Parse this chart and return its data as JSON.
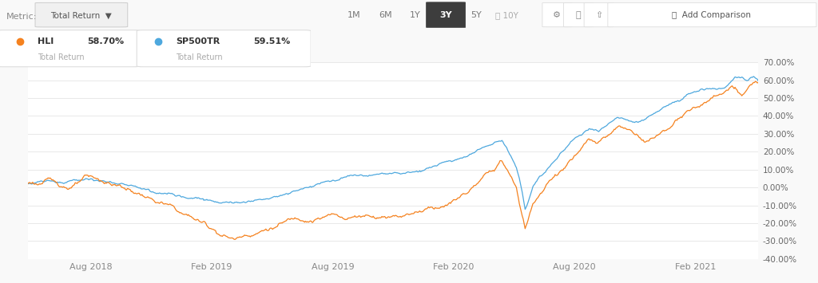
{
  "hli_final": 58.7,
  "sp500_final": 59.51,
  "ylim": [
    -40,
    70
  ],
  "yticks": [
    -40,
    -30,
    -20,
    -10,
    0,
    10,
    20,
    30,
    40,
    50,
    60,
    70
  ],
  "hli_color": "#f5821f",
  "sp500_color": "#4ea8de",
  "bg_color": "#ffffff",
  "grid_color": "#e8e8e8",
  "fig_bg": "#f9f9f9",
  "x_labels": [
    "Aug 2018",
    "Feb 2019",
    "Aug 2019",
    "Feb 2020",
    "Aug 2020",
    "Feb 2021"
  ],
  "hli_waypoints": [
    [
      0,
      2
    ],
    [
      20,
      5
    ],
    [
      40,
      3
    ],
    [
      60,
      7
    ],
    [
      80,
      4
    ],
    [
      100,
      1
    ],
    [
      120,
      -3
    ],
    [
      140,
      -8
    ],
    [
      160,
      -14
    ],
    [
      180,
      -19
    ],
    [
      200,
      -24
    ],
    [
      215,
      -26
    ],
    [
      230,
      -22
    ],
    [
      250,
      -17
    ],
    [
      270,
      -13
    ],
    [
      290,
      -10
    ],
    [
      310,
      -8
    ],
    [
      330,
      -9
    ],
    [
      350,
      -7
    ],
    [
      370,
      -6
    ],
    [
      385,
      -4
    ],
    [
      400,
      -2
    ],
    [
      415,
      1
    ],
    [
      430,
      4
    ],
    [
      445,
      7
    ],
    [
      455,
      11
    ],
    [
      465,
      15
    ],
    [
      475,
      19
    ],
    [
      483,
      23
    ],
    [
      490,
      26
    ],
    [
      495,
      22
    ],
    [
      500,
      17
    ],
    [
      505,
      10
    ],
    [
      508,
      2
    ],
    [
      511,
      -5
    ],
    [
      514,
      -12
    ],
    [
      517,
      -8
    ],
    [
      522,
      2
    ],
    [
      530,
      8
    ],
    [
      540,
      14
    ],
    [
      550,
      20
    ],
    [
      560,
      26
    ],
    [
      570,
      30
    ],
    [
      580,
      35
    ],
    [
      590,
      32
    ],
    [
      600,
      36
    ],
    [
      610,
      40
    ],
    [
      620,
      38
    ],
    [
      630,
      35
    ],
    [
      640,
      33
    ],
    [
      650,
      36
    ],
    [
      660,
      40
    ],
    [
      670,
      44
    ],
    [
      680,
      47
    ],
    [
      690,
      50
    ],
    [
      700,
      52
    ],
    [
      710,
      54
    ],
    [
      720,
      56
    ],
    [
      728,
      58
    ],
    [
      732,
      55
    ],
    [
      738,
      52
    ],
    [
      744,
      56
    ],
    [
      750,
      58
    ],
    [
      755,
      58.7
    ]
  ],
  "sp500_waypoints": [
    [
      0,
      2
    ],
    [
      20,
      4
    ],
    [
      40,
      3
    ],
    [
      60,
      6
    ],
    [
      80,
      4
    ],
    [
      100,
      2
    ],
    [
      120,
      0
    ],
    [
      140,
      -1
    ],
    [
      160,
      -3
    ],
    [
      180,
      -4
    ],
    [
      200,
      -5
    ],
    [
      215,
      -4
    ],
    [
      230,
      -2
    ],
    [
      250,
      1
    ],
    [
      270,
      4
    ],
    [
      290,
      7
    ],
    [
      310,
      10
    ],
    [
      330,
      12
    ],
    [
      350,
      13
    ],
    [
      370,
      14
    ],
    [
      385,
      13
    ],
    [
      400,
      14
    ],
    [
      415,
      16
    ],
    [
      430,
      18
    ],
    [
      445,
      20
    ],
    [
      455,
      22
    ],
    [
      465,
      24
    ],
    [
      475,
      26
    ],
    [
      483,
      28
    ],
    [
      490,
      30
    ],
    [
      495,
      26
    ],
    [
      500,
      21
    ],
    [
      505,
      15
    ],
    [
      508,
      8
    ],
    [
      511,
      0
    ],
    [
      514,
      -10
    ],
    [
      517,
      -6
    ],
    [
      522,
      3
    ],
    [
      530,
      10
    ],
    [
      540,
      16
    ],
    [
      550,
      22
    ],
    [
      560,
      27
    ],
    [
      570,
      31
    ],
    [
      580,
      35
    ],
    [
      590,
      33
    ],
    [
      600,
      37
    ],
    [
      610,
      40
    ],
    [
      620,
      38
    ],
    [
      630,
      36
    ],
    [
      640,
      38
    ],
    [
      650,
      42
    ],
    [
      660,
      45
    ],
    [
      670,
      48
    ],
    [
      680,
      51
    ],
    [
      690,
      53
    ],
    [
      700,
      55
    ],
    [
      710,
      57
    ],
    [
      720,
      58
    ],
    [
      728,
      61
    ],
    [
      732,
      63
    ],
    [
      738,
      62
    ],
    [
      744,
      60
    ],
    [
      750,
      61
    ],
    [
      755,
      59.51
    ]
  ],
  "noise_scale_hli": 1.5,
  "noise_scale_sp500": 0.9,
  "n_points": 756
}
